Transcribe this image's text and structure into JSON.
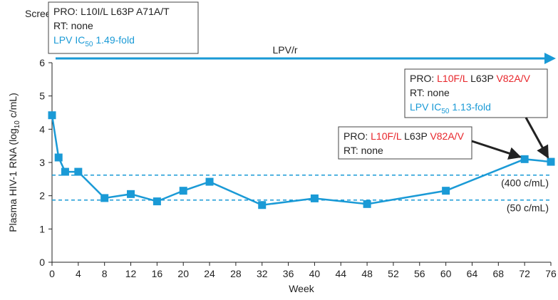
{
  "chart_data": {
    "type": "line",
    "x_label": "Week",
    "y_label": [
      {
        "text": "Plasma HIV-1 RNA (log"
      },
      {
        "text": "10",
        "subscript": true
      },
      {
        "text": " c/mL)"
      }
    ],
    "x": [
      0,
      1,
      2,
      4,
      8,
      12,
      16,
      20,
      24,
      32,
      40,
      48,
      60,
      72,
      76
    ],
    "series": [
      {
        "name": "HIV-1 RNA",
        "color": "#1a9ad6",
        "values": [
          4.42,
          3.15,
          2.72,
          2.72,
          1.93,
          2.05,
          1.83,
          2.15,
          2.42,
          1.72,
          1.92,
          1.75,
          2.15,
          3.1,
          3.02
        ]
      }
    ],
    "xlim": [
      0,
      76
    ],
    "xticks": [
      0,
      4,
      8,
      12,
      16,
      20,
      24,
      28,
      32,
      36,
      40,
      44,
      48,
      52,
      56,
      60,
      64,
      68,
      72,
      76
    ],
    "ylim": [
      0,
      6
    ],
    "yticks": [
      0,
      1,
      2,
      3,
      4,
      5,
      6
    ],
    "reference_lines": [
      {
        "value": 2.62,
        "label": "(400 c/mL)",
        "color": "#1a9ad6"
      },
      {
        "value": 1.87,
        "label": "(50 c/mL)",
        "color": "#1a9ad6"
      }
    ],
    "screen_label": "Screen",
    "treatment": {
      "label": "LPV/r",
      "color": "#1a9ad6"
    },
    "annotations": [
      {
        "lines": [
          [
            {
              "text": "PRO: L10I/L L63P A71A/T",
              "color": "#222222"
            }
          ],
          [
            {
              "text": "RT: none",
              "color": "#222222"
            }
          ],
          [
            {
              "text": "LPV IC",
              "color": "#1a9ad6"
            },
            {
              "text": "50",
              "color": "#1a9ad6",
              "subscript": true
            },
            {
              "text": " 1.49-fold",
              "color": "#1a9ad6"
            }
          ]
        ]
      },
      {
        "lines": [
          [
            {
              "text": "PRO: ",
              "color": "#222222"
            },
            {
              "text": "L10F/L",
              "color": "#e8262b"
            },
            {
              "text": " L63P ",
              "color": "#222222"
            },
            {
              "text": "V82A/V",
              "color": "#e8262b"
            }
          ],
          [
            {
              "text": "RT: none",
              "color": "#222222"
            }
          ],
          [
            {
              "text": "LPV IC",
              "color": "#1a9ad6"
            },
            {
              "text": "50",
              "color": "#1a9ad6",
              "subscript": true
            },
            {
              "text": " 1.13-fold",
              "color": "#1a9ad6"
            }
          ]
        ]
      },
      {
        "lines": [
          [
            {
              "text": "PRO: ",
              "color": "#222222"
            },
            {
              "text": "L10F/L",
              "color": "#e8262b"
            },
            {
              "text": " L63P ",
              "color": "#222222"
            },
            {
              "text": "V82A/V",
              "color": "#e8262b"
            }
          ],
          [
            {
              "text": "RT:  none",
              "color": "#222222"
            }
          ]
        ]
      }
    ]
  }
}
